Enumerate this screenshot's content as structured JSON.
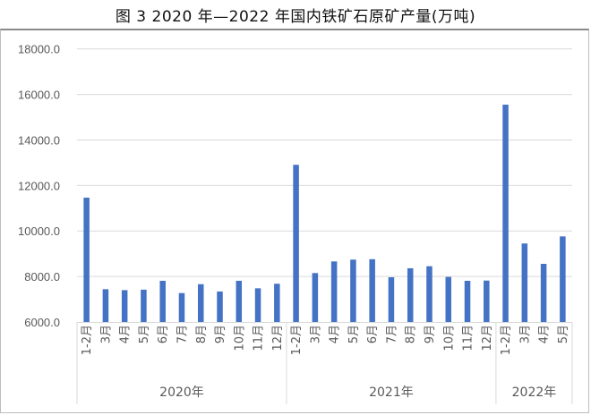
{
  "chart_data": {
    "type": "bar",
    "title": "图 3 2020 年—2022 年国内铁矿石原矿产量(万吨)",
    "xlabel": "",
    "ylabel": "",
    "ylim": [
      6000,
      18000
    ],
    "yticks": [
      "6000.0",
      "8000.0",
      "10000.0",
      "12000.0",
      "14000.0",
      "16000.0",
      "18000.0"
    ],
    "grid": true,
    "bar_color": "#4472C4",
    "groups": [
      {
        "label": "2020年",
        "categories": [
          "1-2月",
          "3月",
          "4月",
          "5月",
          "6月",
          "7月",
          "8月",
          "9月",
          "10月",
          "11月",
          "12月"
        ],
        "values": [
          11464,
          7440,
          7400,
          7420,
          7810,
          7270,
          7660,
          7340,
          7810,
          7480,
          7680
        ]
      },
      {
        "label": "2021年",
        "categories": [
          "1-2月",
          "3月",
          "4月",
          "5月",
          "6月",
          "7月",
          "8月",
          "9月",
          "10月",
          "11月",
          "12月"
        ],
        "values": [
          12906,
          8150,
          8660,
          8740,
          8760,
          7965,
          8360,
          8450,
          7980,
          7810,
          7820
        ]
      },
      {
        "label": "2022年",
        "categories": [
          "1-2月",
          "3月",
          "4月",
          "5月"
        ],
        "values": [
          15550,
          9450,
          8555,
          9760
        ]
      }
    ]
  }
}
